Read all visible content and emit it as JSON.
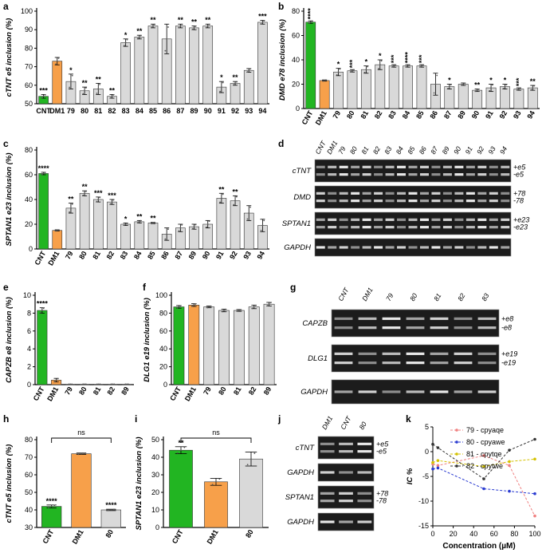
{
  "panel_labels": [
    "a",
    "b",
    "c",
    "d",
    "e",
    "f",
    "g",
    "h",
    "i",
    "j",
    "k"
  ],
  "chart_data": [
    {
      "id": "a",
      "type": "bar",
      "ylabel": "cTNT e5 inclusion (%)",
      "ylim": [
        50,
        100
      ],
      "yticks": [
        50,
        60,
        70,
        80,
        90,
        100
      ],
      "categories": [
        "CNT",
        "DM1",
        "79",
        "80",
        "81",
        "82",
        "83",
        "84",
        "85",
        "86",
        "87",
        "89",
        "90",
        "91",
        "92",
        "93",
        "94"
      ],
      "values": [
        54,
        73,
        62,
        57,
        58,
        54,
        83,
        86,
        92,
        85,
        92,
        91,
        92,
        59,
        61,
        68,
        94
      ],
      "errors": [
        1,
        2,
        4,
        2,
        3,
        1,
        2,
        1,
        1,
        8,
        1,
        1,
        1,
        3,
        1,
        1,
        1
      ],
      "colors": [
        "#22b522",
        "#f7a04a",
        "#d9d9d9",
        "#d9d9d9",
        "#d9d9d9",
        "#d9d9d9",
        "#d9d9d9",
        "#d9d9d9",
        "#d9d9d9",
        "#d9d9d9",
        "#d9d9d9",
        "#d9d9d9",
        "#d9d9d9",
        "#d9d9d9",
        "#d9d9d9",
        "#d9d9d9",
        "#d9d9d9"
      ],
      "significance": [
        "***",
        "",
        "*",
        "**",
        "**",
        "**",
        "*",
        "**",
        "**",
        "",
        "**",
        "**",
        "**",
        "*",
        "**",
        "",
        "***"
      ]
    },
    {
      "id": "b",
      "type": "bar",
      "ylabel": "DMD e78 inclusion (%)",
      "ylim": [
        0,
        80
      ],
      "yticks": [
        0,
        20,
        40,
        60,
        80
      ],
      "categories": [
        "CNT",
        "DM1",
        "79",
        "80",
        "81",
        "82",
        "83",
        "84",
        "85",
        "86",
        "87",
        "89",
        "90",
        "91",
        "92",
        "93",
        "94"
      ],
      "values": [
        71,
        23,
        30,
        31,
        32,
        36,
        35,
        35,
        35,
        20,
        18,
        20,
        15,
        17,
        18,
        16,
        17
      ],
      "errors": [
        1,
        0.5,
        3,
        1,
        3,
        4,
        1,
        1,
        1,
        9,
        2,
        1,
        1,
        3,
        2,
        1,
        2
      ],
      "colors": [
        "#22b522",
        "#f7a04a",
        "#d9d9d9",
        "#d9d9d9",
        "#d9d9d9",
        "#d9d9d9",
        "#d9d9d9",
        "#d9d9d9",
        "#d9d9d9",
        "#d9d9d9",
        "#d9d9d9",
        "#d9d9d9",
        "#d9d9d9",
        "#d9d9d9",
        "#d9d9d9",
        "#d9d9d9",
        "#d9d9d9"
      ],
      "significance": [
        "****",
        "",
        "*",
        "***",
        "*",
        "*",
        "***",
        "****",
        "***",
        "",
        "*",
        "",
        "**",
        "*",
        "*",
        "***",
        "**"
      ]
    },
    {
      "id": "c",
      "type": "bar",
      "ylabel": "SPTAN1 e23 inclusion (%)",
      "ylim": [
        0,
        80
      ],
      "yticks": [
        0,
        20,
        40,
        60,
        80
      ],
      "categories": [
        "CNT",
        "DM1",
        "79",
        "80",
        "81",
        "82",
        "83",
        "84",
        "85",
        "86",
        "87",
        "89",
        "90",
        "91",
        "92",
        "93",
        "94"
      ],
      "values": [
        61,
        15,
        33,
        45,
        40,
        38,
        20,
        22,
        21,
        12,
        17,
        18,
        20,
        41,
        39,
        29,
        19
      ],
      "errors": [
        1,
        0.5,
        4,
        2,
        2,
        2,
        1,
        1,
        0.5,
        5,
        3,
        2,
        3,
        4,
        4,
        6,
        5
      ],
      "colors": [
        "#22b522",
        "#f7a04a",
        "#d9d9d9",
        "#d9d9d9",
        "#d9d9d9",
        "#d9d9d9",
        "#d9d9d9",
        "#d9d9d9",
        "#d9d9d9",
        "#d9d9d9",
        "#d9d9d9",
        "#d9d9d9",
        "#d9d9d9",
        "#d9d9d9",
        "#d9d9d9",
        "#d9d9d9",
        "#d9d9d9"
      ],
      "significance": [
        "****",
        "",
        "**",
        "**",
        "***",
        "***",
        "*",
        "**",
        "**",
        "",
        "",
        "",
        "",
        "**",
        "**",
        "",
        ""
      ]
    },
    {
      "id": "e",
      "type": "bar",
      "ylabel": "CAPZB e8 inclusion (%)",
      "ylim": [
        0,
        10
      ],
      "yticks": [
        0,
        2,
        4,
        6,
        8,
        10
      ],
      "categories": [
        "CNT",
        "DM1",
        "79",
        "80",
        "81",
        "82",
        "89"
      ],
      "values": [
        8.3,
        0.5,
        0.05,
        0.05,
        0.05,
        0.05,
        0.05
      ],
      "errors": [
        0.3,
        0.2,
        0,
        0,
        0,
        0,
        0
      ],
      "colors": [
        "#22b522",
        "#f7a04a",
        "#d9d9d9",
        "#d9d9d9",
        "#d9d9d9",
        "#d9d9d9",
        "#d9d9d9"
      ],
      "significance": [
        "****",
        "",
        "",
        "",
        "",
        "",
        ""
      ]
    },
    {
      "id": "f",
      "type": "bar",
      "ylabel": "DLG1 e19 inclusion (%)",
      "ylim": [
        0,
        100
      ],
      "yticks": [
        0,
        20,
        40,
        60,
        80,
        100
      ],
      "categories": [
        "CNT",
        "DM1",
        "79",
        "80",
        "81",
        "82",
        "89"
      ],
      "values": [
        87,
        89,
        87,
        83,
        83,
        87,
        90
      ],
      "errors": [
        1.5,
        1.5,
        1,
        1.5,
        1,
        2,
        2
      ],
      "colors": [
        "#22b522",
        "#f7a04a",
        "#d9d9d9",
        "#d9d9d9",
        "#d9d9d9",
        "#d9d9d9",
        "#d9d9d9"
      ],
      "significance": [
        "",
        "",
        "",
        "",
        "",
        "",
        ""
      ]
    },
    {
      "id": "h",
      "type": "bar",
      "ylabel": "cTNT e5 inclusion (%)",
      "ylim": [
        30,
        80
      ],
      "yticks": [
        30,
        40,
        50,
        60,
        70,
        80
      ],
      "categories": [
        "CNT",
        "DM1",
        "80"
      ],
      "values": [
        42,
        72,
        40
      ],
      "errors": [
        0.8,
        0.4,
        0.4
      ],
      "colors": [
        "#22b522",
        "#f7a04a",
        "#d9d9d9"
      ],
      "significance": [
        "****",
        "",
        "****"
      ],
      "comparison": "ns"
    },
    {
      "id": "i",
      "type": "bar",
      "ylabel": "SPTAN1 e23 inclusion (%)",
      "ylim": [
        0,
        50
      ],
      "yticks": [
        0,
        10,
        20,
        30,
        40,
        50
      ],
      "categories": [
        "CNT",
        "DM1",
        "80"
      ],
      "values": [
        44,
        26,
        39
      ],
      "errors": [
        2,
        2,
        4
      ],
      "colors": [
        "#22b522",
        "#f7a04a",
        "#d9d9d9"
      ],
      "significance": [
        "**",
        "",
        ""
      ],
      "comparison": "ns"
    },
    {
      "id": "k",
      "type": "line",
      "xlabel": "Concentration (µM)",
      "ylabel": "IC %",
      "xlim": [
        0,
        100
      ],
      "ylim": [
        -15,
        5
      ],
      "xticks": [
        0,
        20,
        40,
        60,
        80,
        100
      ],
      "yticks": [
        -15,
        -10,
        -5,
        0,
        5
      ],
      "x": [
        0,
        5,
        50,
        75,
        100
      ],
      "series": [
        {
          "name": "79 - cpyaqe",
          "color": "#f08080",
          "values": [
            -2.5,
            -2.8,
            -0.8,
            -2.8,
            -13
          ]
        },
        {
          "name": "80 - cpyawe",
          "color": "#2a3bd1",
          "values": [
            -3.5,
            -3.3,
            -7.5,
            -8,
            -8.5
          ]
        },
        {
          "name": "81 - cpytqe",
          "color": "#d4c200",
          "values": [
            -2.2,
            -1.8,
            -3.0,
            -2.0,
            -1.5
          ]
        },
        {
          "name": "82 - cpytwe",
          "color": "#333333",
          "values": [
            1.5,
            0.8,
            -5.5,
            0.3,
            2.5
          ]
        }
      ]
    }
  ],
  "gels": {
    "d": {
      "lanes": [
        "CNT",
        "DM1",
        "79",
        "80",
        "81",
        "82",
        "83",
        "84",
        "85",
        "86",
        "87",
        "89",
        "90",
        "91",
        "92",
        "93",
        "94"
      ],
      "genes": [
        {
          "name": "cTNT",
          "bands": [
            "+e5",
            "-e5"
          ]
        },
        {
          "name": "DMD",
          "bands": [
            "+78",
            "-78"
          ]
        },
        {
          "name": "SPTAN1",
          "bands": [
            "+e23",
            "-e23"
          ]
        },
        {
          "name": "GAPDH",
          "bands": []
        }
      ]
    },
    "g": {
      "lanes": [
        "CNT",
        "DM1",
        "79",
        "80",
        "81",
        "82",
        "83"
      ],
      "genes": [
        {
          "name": "CAPZB",
          "bands": [
            "+e8",
            "-e8"
          ]
        },
        {
          "name": "DLG1",
          "bands": [
            "+e19",
            "-e19"
          ]
        },
        {
          "name": "GAPDH",
          "bands": []
        }
      ]
    },
    "j": {
      "lanes": [
        "DM1",
        "CNT",
        "80"
      ],
      "genes": [
        {
          "name": "cTNT",
          "bands": [
            "+e5",
            "-e5"
          ]
        },
        {
          "name": "GAPDH",
          "bands": []
        },
        {
          "name": "SPTAN1",
          "bands": [
            "+78",
            "-78"
          ]
        },
        {
          "name": "GAPDH",
          "bands": []
        }
      ]
    }
  }
}
